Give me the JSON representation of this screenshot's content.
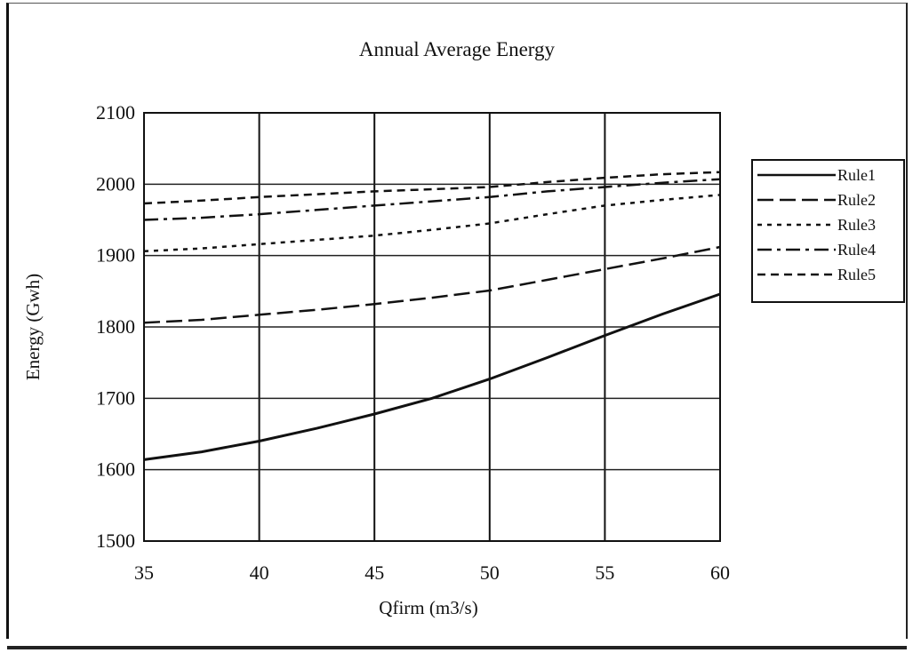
{
  "chart_data": {
    "type": "line",
    "title": "Annual Average Energy",
    "xlabel": "Qfirm (m3/s)",
    "ylabel": "Energy (Gwh)",
    "xlim": [
      35,
      60
    ],
    "ylim": [
      1500,
      2100
    ],
    "x_ticks": [
      "35",
      "40",
      "45",
      "50",
      "55",
      "60"
    ],
    "y_ticks": [
      "2100",
      "2000",
      "1900",
      "1800",
      "1700",
      "1600",
      "1500"
    ],
    "grid": true,
    "legend_position": "right",
    "x": [
      35,
      37.5,
      40,
      42.5,
      45,
      47.5,
      50,
      52.5,
      55,
      57.5,
      60
    ],
    "series": [
      {
        "name": "Rule1",
        "style": "solid",
        "values": [
          1614,
          1625,
          1640,
          1658,
          1678,
          1700,
          1727,
          1757,
          1788,
          1818,
          1846
        ]
      },
      {
        "name": "Rule2",
        "style": "longdash",
        "values": [
          1806,
          1810,
          1817,
          1824,
          1832,
          1841,
          1851,
          1866,
          1881,
          1896,
          1912
        ]
      },
      {
        "name": "Rule3",
        "style": "dotted",
        "values": [
          1906,
          1910,
          1916,
          1922,
          1928,
          1936,
          1945,
          1958,
          1970,
          1978,
          1985
        ]
      },
      {
        "name": "Rule4",
        "style": "dashdot",
        "values": [
          1950,
          1953,
          1958,
          1964,
          1970,
          1976,
          1982,
          1990,
          1996,
          2002,
          2007
        ]
      },
      {
        "name": "Rule5",
        "style": "dashed",
        "values": [
          1973,
          1977,
          1982,
          1986,
          1990,
          1993,
          1996,
          2003,
          2009,
          2014,
          2017
        ]
      }
    ]
  }
}
